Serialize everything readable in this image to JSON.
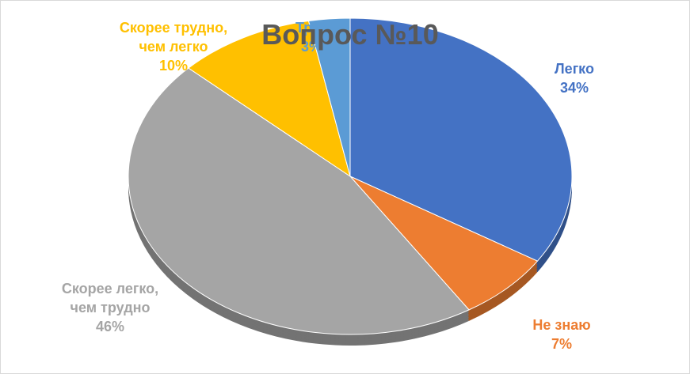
{
  "chart_data": {
    "type": "pie",
    "title": "Вопрос №10",
    "categories": [
      "Легко",
      "Не знаю",
      "Скорее легко, чем трудно",
      "Скорее трудно, чем легко",
      "Трудно"
    ],
    "values": [
      34,
      7,
      46,
      10,
      3
    ],
    "value_labels": [
      "34%",
      "7%",
      "46%",
      "10%",
      "3%"
    ],
    "colors": [
      "#4472c4",
      "#ed7d31",
      "#a5a5a5",
      "#ffc000",
      "#5b9bd5"
    ]
  }
}
